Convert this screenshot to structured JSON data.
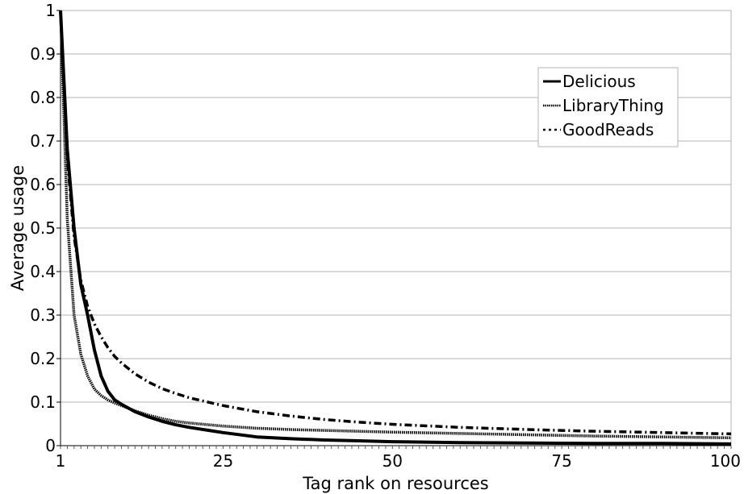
{
  "chart_data": {
    "type": "line",
    "xlabel": "Tag rank on resources",
    "ylabel": "Average usage",
    "xlim": [
      1,
      100
    ],
    "ylim": [
      0,
      1
    ],
    "x_ticks": [
      1,
      25,
      50,
      75,
      100
    ],
    "y_ticks": [
      0,
      0.1,
      0.2,
      0.3,
      0.4,
      0.5,
      0.6,
      0.7,
      0.8,
      0.9,
      1
    ],
    "y_tick_labels": [
      "0",
      "0.1",
      "0.2",
      "0.3",
      "0.4",
      "0.5",
      "0.6",
      "0.7",
      "0.8",
      "0.9",
      "1"
    ],
    "grid": "horizontal",
    "legend_position": "top-right",
    "x": [
      1,
      2,
      3,
      4,
      5,
      6,
      7,
      8,
      9,
      10,
      12,
      14,
      16,
      18,
      20,
      25,
      30,
      35,
      40,
      45,
      50,
      60,
      70,
      80,
      90,
      100
    ],
    "series": [
      {
        "name": "Delicious",
        "style": "solid",
        "values": [
          1.0,
          0.68,
          0.5,
          0.37,
          0.3,
          0.22,
          0.16,
          0.125,
          0.105,
          0.095,
          0.078,
          0.066,
          0.056,
          0.048,
          0.042,
          0.03,
          0.02,
          0.016,
          0.013,
          0.011,
          0.009,
          0.007,
          0.006,
          0.005,
          0.005,
          0.004
        ]
      },
      {
        "name": "LibraryThing",
        "style": "dotted",
        "values": [
          1.0,
          0.52,
          0.3,
          0.21,
          0.16,
          0.13,
          0.115,
          0.105,
          0.098,
          0.092,
          0.08,
          0.07,
          0.062,
          0.056,
          0.052,
          0.045,
          0.04,
          0.037,
          0.035,
          0.033,
          0.031,
          0.028,
          0.025,
          0.022,
          0.02,
          0.018
        ]
      },
      {
        "name": "GoodReads",
        "style": "dashdot",
        "values": [
          1.0,
          0.66,
          0.48,
          0.38,
          0.32,
          0.28,
          0.25,
          0.225,
          0.205,
          0.19,
          0.165,
          0.146,
          0.131,
          0.12,
          0.11,
          0.092,
          0.078,
          0.068,
          0.06,
          0.054,
          0.049,
          0.042,
          0.037,
          0.033,
          0.03,
          0.027
        ]
      }
    ]
  }
}
